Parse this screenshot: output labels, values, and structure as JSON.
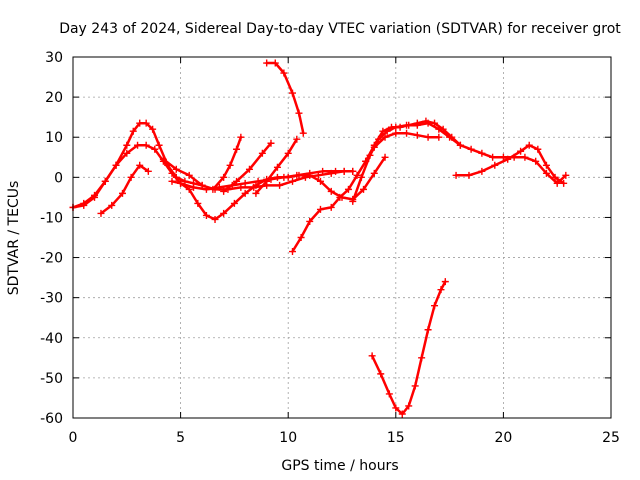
{
  "chart_data": {
    "type": "scatter",
    "title": "Day 243 of 2024, Sidereal Day-to-day VTEC variation (SDTVAR) for receiver grot",
    "xlabel": "GPS time / hours",
    "ylabel": "SDTVAR / TECUs",
    "xlim": [
      0,
      25
    ],
    "ylim": [
      -60,
      30
    ],
    "xticks": [
      0,
      5,
      10,
      15,
      20,
      25
    ],
    "yticks": [
      -60,
      -50,
      -40,
      -30,
      -20,
      -10,
      0,
      10,
      20,
      30
    ],
    "xtick_labels": [
      "0",
      "5",
      "10",
      "15",
      "20",
      "25"
    ],
    "ytick_labels": [
      "-60",
      "-50",
      "-40",
      "-30",
      "-20",
      "-10",
      "0",
      "10",
      "20",
      "30"
    ],
    "grid": true,
    "marker": "plus",
    "color": "#ff0000",
    "series": [
      {
        "name": "arc1",
        "x": [
          0.0,
          0.5,
          1.0,
          1.5,
          2.0,
          2.5,
          3.0,
          3.4,
          3.8,
          4.2,
          4.6,
          5.0,
          5.6,
          6.2,
          6.8,
          7.4,
          8.0,
          8.6,
          9.2,
          9.8,
          10.4,
          11.0,
          11.6,
          12.2,
          12.6,
          13.0
        ],
        "y": [
          -7.5,
          -7.0,
          -5.0,
          -1.0,
          3.0,
          6.0,
          8.0,
          8.0,
          7.0,
          4.0,
          1.0,
          -1.5,
          -2.5,
          -3.0,
          -2.5,
          -2.0,
          -1.5,
          -1.0,
          -0.5,
          0.0,
          0.5,
          1.0,
          1.5,
          1.5,
          1.5,
          1.5
        ]
      },
      {
        "name": "arc2",
        "x": [
          0.0,
          0.5,
          1.0,
          1.5,
          2.0,
          2.5,
          2.8,
          3.1,
          3.4,
          3.7,
          4.0,
          4.4,
          4.8,
          5.2,
          5.6,
          6.0
        ],
        "y": [
          -7.5,
          -6.5,
          -4.5,
          -1.0,
          3.0,
          8.0,
          11.5,
          13.5,
          13.5,
          12.0,
          8.0,
          3.0,
          0.0,
          -1.0,
          -1.5,
          -2.0
        ]
      },
      {
        "name": "arc3",
        "x": [
          1.3,
          1.8,
          2.3,
          2.7,
          3.1,
          3.5
        ],
        "y": [
          -9.0,
          -7.0,
          -4.0,
          0.0,
          3.0,
          1.5
        ]
      },
      {
        "name": "arc4",
        "x": [
          4.2,
          4.8,
          5.4,
          6.0,
          6.6,
          7.2,
          7.8,
          8.4,
          9.0,
          9.6,
          10.2,
          10.8,
          11.4,
          12.0,
          12.6,
          13.0
        ],
        "y": [
          4.5,
          2.0,
          0.5,
          -2.0,
          -3.0,
          -3.0,
          -2.5,
          -2.5,
          -2.0,
          -2.0,
          -1.0,
          0.0,
          0.5,
          1.0,
          1.5,
          1.5
        ]
      },
      {
        "name": "arc5",
        "x": [
          4.6,
          5.0,
          5.4,
          5.8,
          6.2,
          6.6,
          7.0,
          7.5,
          8.0,
          8.5,
          9.0,
          9.5,
          10.0,
          10.5,
          11.0,
          11.5,
          12.0,
          12.5,
          13.0,
          13.5,
          14.0,
          14.5
        ],
        "y": [
          -1.0,
          -1.5,
          -3.0,
          -6.5,
          -9.5,
          -10.5,
          -9.0,
          -6.5,
          -4.0,
          -2.0,
          -0.5,
          0.0,
          0.0,
          0.5,
          0.5,
          -1.0,
          -3.5,
          -5.0,
          -5.5,
          -3.0,
          1.0,
          5.0
        ]
      },
      {
        "name": "arc6",
        "x": [
          6.5,
          7.0,
          7.3,
          7.6,
          7.8
        ],
        "y": [
          -3.0,
          0.0,
          3.0,
          7.0,
          10.0
        ]
      },
      {
        "name": "arc7",
        "x": [
          7.0,
          7.6,
          8.2,
          8.8,
          9.2
        ],
        "y": [
          -3.5,
          -1.0,
          2.0,
          6.0,
          8.5
        ]
      },
      {
        "name": "arc8",
        "x": [
          8.5,
          9.0,
          9.5,
          10.0,
          10.4
        ],
        "y": [
          -4.0,
          -1.0,
          2.5,
          6.0,
          9.5
        ]
      },
      {
        "name": "arc9",
        "x": [
          9.0,
          9.4,
          9.8,
          10.2,
          10.5,
          10.7
        ],
        "y": [
          28.5,
          28.5,
          26.0,
          21.0,
          16.0,
          11.0
        ]
      },
      {
        "name": "arc10",
        "x": [
          10.2,
          10.6,
          11.0,
          11.5,
          12.0,
          12.4,
          12.8,
          13.2,
          13.6,
          14.0,
          14.4,
          14.8,
          15.2,
          15.6,
          16.0,
          16.4,
          16.8,
          17.2,
          17.6,
          18.0
        ],
        "y": [
          -18.5,
          -15.0,
          -11.0,
          -8.0,
          -7.5,
          -5.0,
          -3.0,
          0.5,
          4.0,
          8.0,
          11.5,
          12.5,
          12.5,
          13.0,
          13.5,
          14.0,
          13.5,
          12.0,
          10.0,
          8.0
        ]
      },
      {
        "name": "arc11",
        "x": [
          13.0,
          13.4,
          13.8,
          14.2,
          14.6,
          15.0,
          15.5,
          16.0,
          16.5,
          17.0,
          17.5,
          18.0,
          18.5,
          19.0,
          19.5,
          20.0,
          20.5,
          21.0,
          21.5,
          22.0,
          22.5,
          22.9
        ],
        "y": [
          -6.0,
          0.0,
          5.5,
          9.5,
          11.5,
          12.5,
          13.0,
          13.0,
          13.5,
          12.0,
          10.0,
          8.0,
          7.0,
          6.0,
          5.0,
          5.0,
          5.0,
          5.0,
          4.0,
          1.0,
          -1.5,
          0.5
        ]
      },
      {
        "name": "arc12",
        "x": [
          13.6,
          14.0,
          14.5,
          15.0,
          15.5,
          16.0,
          16.5,
          17.0
        ],
        "y": [
          4.0,
          7.5,
          10.0,
          11.0,
          11.0,
          10.5,
          10.0,
          10.0
        ]
      },
      {
        "name": "arc13",
        "x": [
          17.8,
          18.4,
          19.0,
          19.6,
          20.2,
          20.8,
          21.2,
          21.6,
          22.0,
          22.4,
          22.8
        ],
        "y": [
          0.5,
          0.5,
          1.5,
          3.0,
          4.5,
          6.5,
          8.0,
          7.0,
          3.0,
          0.0,
          -1.5
        ]
      },
      {
        "name": "arc14",
        "x": [
          13.9,
          14.3,
          14.7,
          15.0,
          15.3,
          15.6,
          15.9,
          16.2,
          16.5,
          16.8,
          17.1,
          17.3
        ],
        "y": [
          -44.5,
          -49.0,
          -54.0,
          -57.5,
          -59.0,
          -57.0,
          -52.0,
          -45.0,
          -38.0,
          -32.0,
          -28.0,
          -26.0
        ]
      }
    ]
  }
}
